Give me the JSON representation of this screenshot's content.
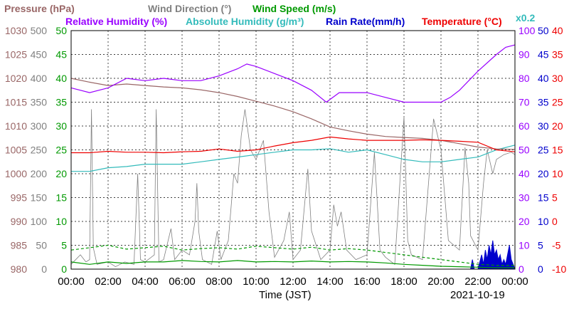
{
  "chart_data": {
    "type": "line",
    "date": "2021-10-19",
    "xlabel": "Time (JST)",
    "x_ticks": [
      "00:00",
      "02:00",
      "04:00",
      "06:00",
      "08:00",
      "10:00",
      "12:00",
      "14:00",
      "16:00",
      "18:00",
      "20:00",
      "22:00",
      "00:00"
    ],
    "legend": [
      {
        "label": "Pressure (hPa)",
        "color": "#996666"
      },
      {
        "label": "Wind Direction (°)",
        "color": "#808080"
      },
      {
        "label": "Wind Speed (m/s)",
        "color": "#009900"
      },
      {
        "label": "Relative Humidity (%)",
        "color": "#9900ff"
      },
      {
        "label": "Absolute Humidity (g/m³)",
        "color": "#33bbbb"
      },
      {
        "label": "Rain Rate(mm/h)",
        "color": "#0000cc"
      },
      {
        "label": "Temperature (°C)",
        "color": "#ee0000"
      }
    ],
    "rain_scale_note": "x0.2",
    "axes": {
      "pressure": {
        "range": [
          980,
          1030
        ],
        "ticks": [
          "1030",
          "1025",
          "1020",
          "1015",
          "1010",
          "1005",
          "1000",
          "995",
          "990",
          "985",
          "980"
        ],
        "color": "#996666"
      },
      "wind_direction": {
        "range": [
          0,
          500
        ],
        "ticks": [
          "500",
          "450",
          "400",
          "350",
          "300",
          "250",
          "200",
          "150",
          "100",
          "50",
          "0"
        ],
        "color": "#808080"
      },
      "wind_speed": {
        "range": [
          0,
          50
        ],
        "ticks": [
          "50",
          "45",
          "40",
          "35",
          "30",
          "25",
          "20",
          "15",
          "10",
          "5",
          "0"
        ],
        "color": "#009900"
      },
      "humidity": {
        "range": [
          0,
          100
        ],
        "ticks": [
          "100",
          "90",
          "80",
          "70",
          "60",
          "50",
          "40",
          "30",
          "20",
          "10",
          "0"
        ],
        "color": "#9900ff"
      },
      "rain": {
        "range": [
          0,
          50
        ],
        "ticks": [
          "50",
          "45",
          "40",
          "35",
          "30",
          "25",
          "20",
          "15",
          "10",
          "5",
          "0"
        ],
        "color": "#0000cc"
      },
      "temperature": {
        "range": [
          -10,
          40
        ],
        "ticks": [
          "40",
          "35",
          "30",
          "25",
          "20",
          "15",
          "10",
          "5",
          "0",
          "-5",
          "-10"
        ],
        "color": "#ee0000"
      }
    },
    "grid": true,
    "series": [
      {
        "name": "Pressure (hPa)",
        "axis": "pressure",
        "color": "#996666",
        "points": [
          [
            0,
            1020
          ],
          [
            1,
            1019.2
          ],
          [
            2,
            1018.5
          ],
          [
            3,
            1018.8
          ],
          [
            4,
            1018.5
          ],
          [
            5,
            1018.2
          ],
          [
            6,
            1018.0
          ],
          [
            7,
            1017.6
          ],
          [
            8,
            1017.0
          ],
          [
            9,
            1016.2
          ],
          [
            10,
            1015.2
          ],
          [
            11,
            1014.2
          ],
          [
            12,
            1013.0
          ],
          [
            13,
            1011.5
          ],
          [
            14,
            1009.8
          ],
          [
            15,
            1009.0
          ],
          [
            16,
            1008.3
          ],
          [
            17,
            1007.8
          ],
          [
            18,
            1007.6
          ],
          [
            19,
            1007.4
          ],
          [
            20,
            1007.0
          ],
          [
            21,
            1006.3
          ],
          [
            22,
            1005.6
          ],
          [
            23,
            1005.2
          ],
          [
            24,
            1005.1
          ]
        ]
      },
      {
        "name": "Relative Humidity (%)",
        "axis": "humidity",
        "color": "#9900ff",
        "points": [
          [
            0,
            76
          ],
          [
            1,
            74
          ],
          [
            2,
            76
          ],
          [
            3,
            80
          ],
          [
            4,
            79
          ],
          [
            5,
            80
          ],
          [
            6,
            79
          ],
          [
            7,
            79
          ],
          [
            8,
            81
          ],
          [
            9,
            84
          ],
          [
            9.5,
            86
          ],
          [
            10,
            85
          ],
          [
            11,
            82
          ],
          [
            12,
            79
          ],
          [
            13,
            75
          ],
          [
            13.8,
            70
          ],
          [
            14.5,
            74
          ],
          [
            15,
            74
          ],
          [
            16,
            74
          ],
          [
            17,
            72
          ],
          [
            18,
            70
          ],
          [
            19,
            70
          ],
          [
            20,
            70
          ],
          [
            20.5,
            72
          ],
          [
            21,
            75
          ],
          [
            22,
            83
          ],
          [
            23,
            90
          ],
          [
            23.5,
            93
          ],
          [
            24,
            94
          ]
        ]
      },
      {
        "name": "Absolute Humidity (g/m³)",
        "axis": "humidity",
        "color": "#33bbbb",
        "points": [
          [
            0,
            41
          ],
          [
            1,
            41
          ],
          [
            2,
            42.5
          ],
          [
            3,
            43
          ],
          [
            4,
            44
          ],
          [
            5,
            44
          ],
          [
            6,
            44
          ],
          [
            7,
            45
          ],
          [
            8,
            46
          ],
          [
            9,
            47
          ],
          [
            10,
            48
          ],
          [
            11,
            49
          ],
          [
            12,
            50
          ],
          [
            13,
            50
          ],
          [
            14,
            50.5
          ],
          [
            15,
            49
          ],
          [
            16,
            50
          ],
          [
            17,
            48
          ],
          [
            18,
            46
          ],
          [
            19,
            45
          ],
          [
            20,
            45
          ],
          [
            21,
            46
          ],
          [
            22,
            47
          ],
          [
            23,
            50
          ],
          [
            24,
            52
          ]
        ]
      },
      {
        "name": "Temperature (°C)",
        "axis": "temperature",
        "color": "#ee0000",
        "points": [
          [
            0,
            14.4
          ],
          [
            1,
            14.4
          ],
          [
            2,
            14.7
          ],
          [
            3,
            14.5
          ],
          [
            4,
            14.5
          ],
          [
            5,
            14.4
          ],
          [
            6,
            14.6
          ],
          [
            7,
            14.7
          ],
          [
            8,
            15.2
          ],
          [
            9,
            14.7
          ],
          [
            10,
            15.0
          ],
          [
            11,
            15.8
          ],
          [
            12,
            16.5
          ],
          [
            13,
            17.0
          ],
          [
            14,
            17.7
          ],
          [
            15,
            17.3
          ],
          [
            16,
            17.0
          ],
          [
            17,
            17.0
          ],
          [
            18,
            17.0
          ],
          [
            19,
            17.1
          ],
          [
            20,
            17.0
          ],
          [
            21,
            16.8
          ],
          [
            22,
            16.6
          ],
          [
            23,
            15.0
          ],
          [
            24,
            14.6
          ]
        ]
      },
      {
        "name": "Wind Direction (°)",
        "axis": "wind_direction",
        "color": "#808080",
        "points": [
          [
            0,
            10
          ],
          [
            0.5,
            30
          ],
          [
            0.8,
            15
          ],
          [
            1,
            20
          ],
          [
            1.1,
            335
          ],
          [
            1.2,
            45
          ],
          [
            1.4,
            10
          ],
          [
            2,
            15
          ],
          [
            2.4,
            5
          ],
          [
            2.9,
            15
          ],
          [
            3.4,
            10
          ],
          [
            3.6,
            200
          ],
          [
            3.75,
            20
          ],
          [
            4,
            15
          ],
          [
            4.5,
            30
          ],
          [
            4.6,
            335
          ],
          [
            4.75,
            15
          ],
          [
            5,
            20
          ],
          [
            5.4,
            85
          ],
          [
            5.6,
            20
          ],
          [
            6,
            40
          ],
          [
            6.4,
            30
          ],
          [
            6.7,
            100
          ],
          [
            6.8,
            180
          ],
          [
            6.9,
            80
          ],
          [
            7.1,
            20
          ],
          [
            7.6,
            10
          ],
          [
            7.9,
            80
          ],
          [
            8.1,
            20
          ],
          [
            8.5,
            60
          ],
          [
            8.8,
            200
          ],
          [
            9.0,
            180
          ],
          [
            9.2,
            280
          ],
          [
            9.4,
            335
          ],
          [
            9.7,
            250
          ],
          [
            10.0,
            230
          ],
          [
            10.4,
            270
          ],
          [
            10.7,
            120
          ],
          [
            11,
            25
          ],
          [
            11.5,
            60
          ],
          [
            11.8,
            120
          ],
          [
            12.0,
            20
          ],
          [
            12.4,
            40
          ],
          [
            12.8,
            210
          ],
          [
            13.0,
            80
          ],
          [
            13.5,
            20
          ],
          [
            14.0,
            40
          ],
          [
            14.2,
            135
          ],
          [
            14.4,
            90
          ],
          [
            14.6,
            120
          ],
          [
            14.9,
            40
          ],
          [
            15.4,
            20
          ],
          [
            16.0,
            30
          ],
          [
            16.4,
            245
          ],
          [
            16.7,
            40
          ],
          [
            17.0,
            25
          ],
          [
            17.5,
            10
          ],
          [
            18.0,
            320
          ],
          [
            18.2,
            60
          ],
          [
            18.4,
            30
          ],
          [
            19.0,
            20
          ],
          [
            19.6,
            315
          ],
          [
            20.0,
            250
          ],
          [
            20.4,
            60
          ],
          [
            21.0,
            40
          ],
          [
            21.3,
            255
          ],
          [
            21.5,
            180
          ],
          [
            21.6,
            70
          ],
          [
            22.0,
            40
          ],
          [
            22.3,
            180
          ],
          [
            22.5,
            250
          ],
          [
            22.8,
            200
          ],
          [
            23.0,
            230
          ],
          [
            23.4,
            240
          ],
          [
            23.8,
            245
          ],
          [
            24,
            240
          ]
        ]
      },
      {
        "name": "Wind Speed (m/s)",
        "axis": "wind_speed",
        "color": "#009900",
        "points": [
          [
            0,
            1.5
          ],
          [
            1,
            1.0
          ],
          [
            2,
            1.5
          ],
          [
            3,
            1.2
          ],
          [
            4,
            1.5
          ],
          [
            5,
            1.5
          ],
          [
            6,
            1.8
          ],
          [
            7,
            1.6
          ],
          [
            8,
            1.5
          ],
          [
            9,
            1.8
          ],
          [
            10,
            1.5
          ],
          [
            11,
            1.6
          ],
          [
            12,
            1.5
          ],
          [
            13,
            1.7
          ],
          [
            14,
            1.5
          ],
          [
            15,
            1.6
          ],
          [
            16,
            1.5
          ],
          [
            17,
            1.3
          ],
          [
            18,
            1.0
          ],
          [
            19,
            0.8
          ],
          [
            20,
            0.6
          ],
          [
            21,
            0.5
          ],
          [
            22,
            0.4
          ],
          [
            23,
            0.3
          ],
          [
            24,
            0.3
          ]
        ]
      },
      {
        "name": "Wind Speed (m/s)",
        "axis": "wind_speed",
        "color": "#009900",
        "dashed": true,
        "points": [
          [
            0,
            4.0
          ],
          [
            1,
            4.5
          ],
          [
            2,
            5.0
          ],
          [
            3,
            4.2
          ],
          [
            4,
            4.5
          ],
          [
            5,
            4.8
          ],
          [
            6,
            4.0
          ],
          [
            7,
            4.3
          ],
          [
            8,
            4.5
          ],
          [
            9,
            4.2
          ],
          [
            10,
            4.8
          ],
          [
            11,
            4.5
          ],
          [
            12,
            4.2
          ],
          [
            13,
            4.6
          ],
          [
            14,
            4.0
          ],
          [
            15,
            4.3
          ],
          [
            16,
            4.0
          ],
          [
            17,
            3.5
          ],
          [
            18,
            3.0
          ],
          [
            19,
            2.5
          ],
          [
            20,
            2.0
          ],
          [
            21,
            1.5
          ],
          [
            22,
            1.0
          ],
          [
            23,
            0.8
          ],
          [
            24,
            0.8
          ]
        ]
      },
      {
        "name": "Rain Rate(mm/h)",
        "axis": "rain",
        "color": "#0000cc",
        "filled": true,
        "points": [
          [
            0,
            0
          ],
          [
            21.6,
            0
          ],
          [
            21.7,
            2
          ],
          [
            21.8,
            0
          ],
          [
            22,
            0
          ],
          [
            22.2,
            3
          ],
          [
            22.3,
            1
          ],
          [
            22.4,
            4
          ],
          [
            22.5,
            2
          ],
          [
            22.6,
            5
          ],
          [
            22.7,
            3
          ],
          [
            22.8,
            6
          ],
          [
            22.9,
            3
          ],
          [
            23.0,
            4
          ],
          [
            23.1,
            2
          ],
          [
            23.2,
            3
          ],
          [
            23.3,
            1
          ],
          [
            23.4,
            2
          ],
          [
            23.5,
            1
          ],
          [
            23.6,
            3
          ],
          [
            23.7,
            5
          ],
          [
            23.8,
            2
          ],
          [
            24,
            0
          ]
        ]
      }
    ]
  }
}
